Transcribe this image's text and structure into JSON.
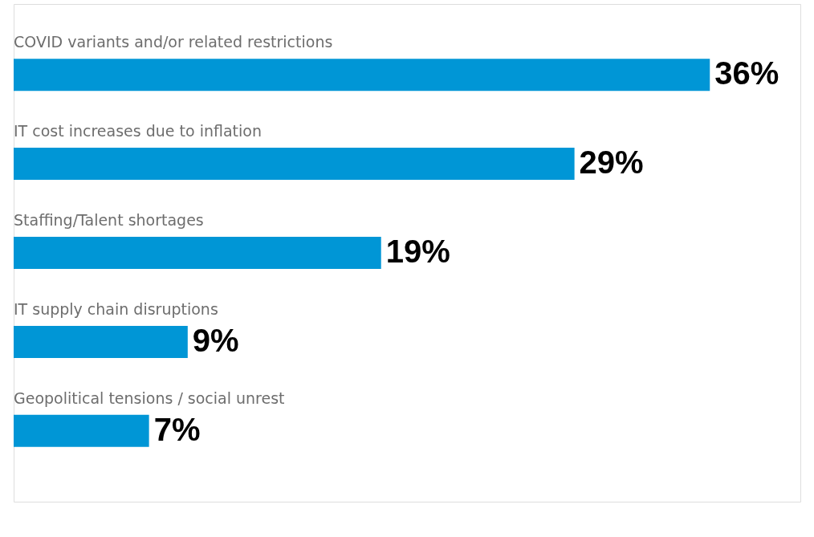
{
  "chart_data": {
    "type": "bar",
    "orientation": "horizontal",
    "categories": [
      "COVID variants and/or related restrictions",
      "IT cost increases due to inflation",
      "Staffing/Talent shortages",
      "IT supply chain disruptions",
      "Geopolitical tensions / social unrest"
    ],
    "values": [
      36,
      29,
      19,
      9,
      7
    ],
    "value_labels": [
      "36%",
      "29%",
      "19%",
      "9%",
      "7%"
    ],
    "color": "#0096d6"
  }
}
